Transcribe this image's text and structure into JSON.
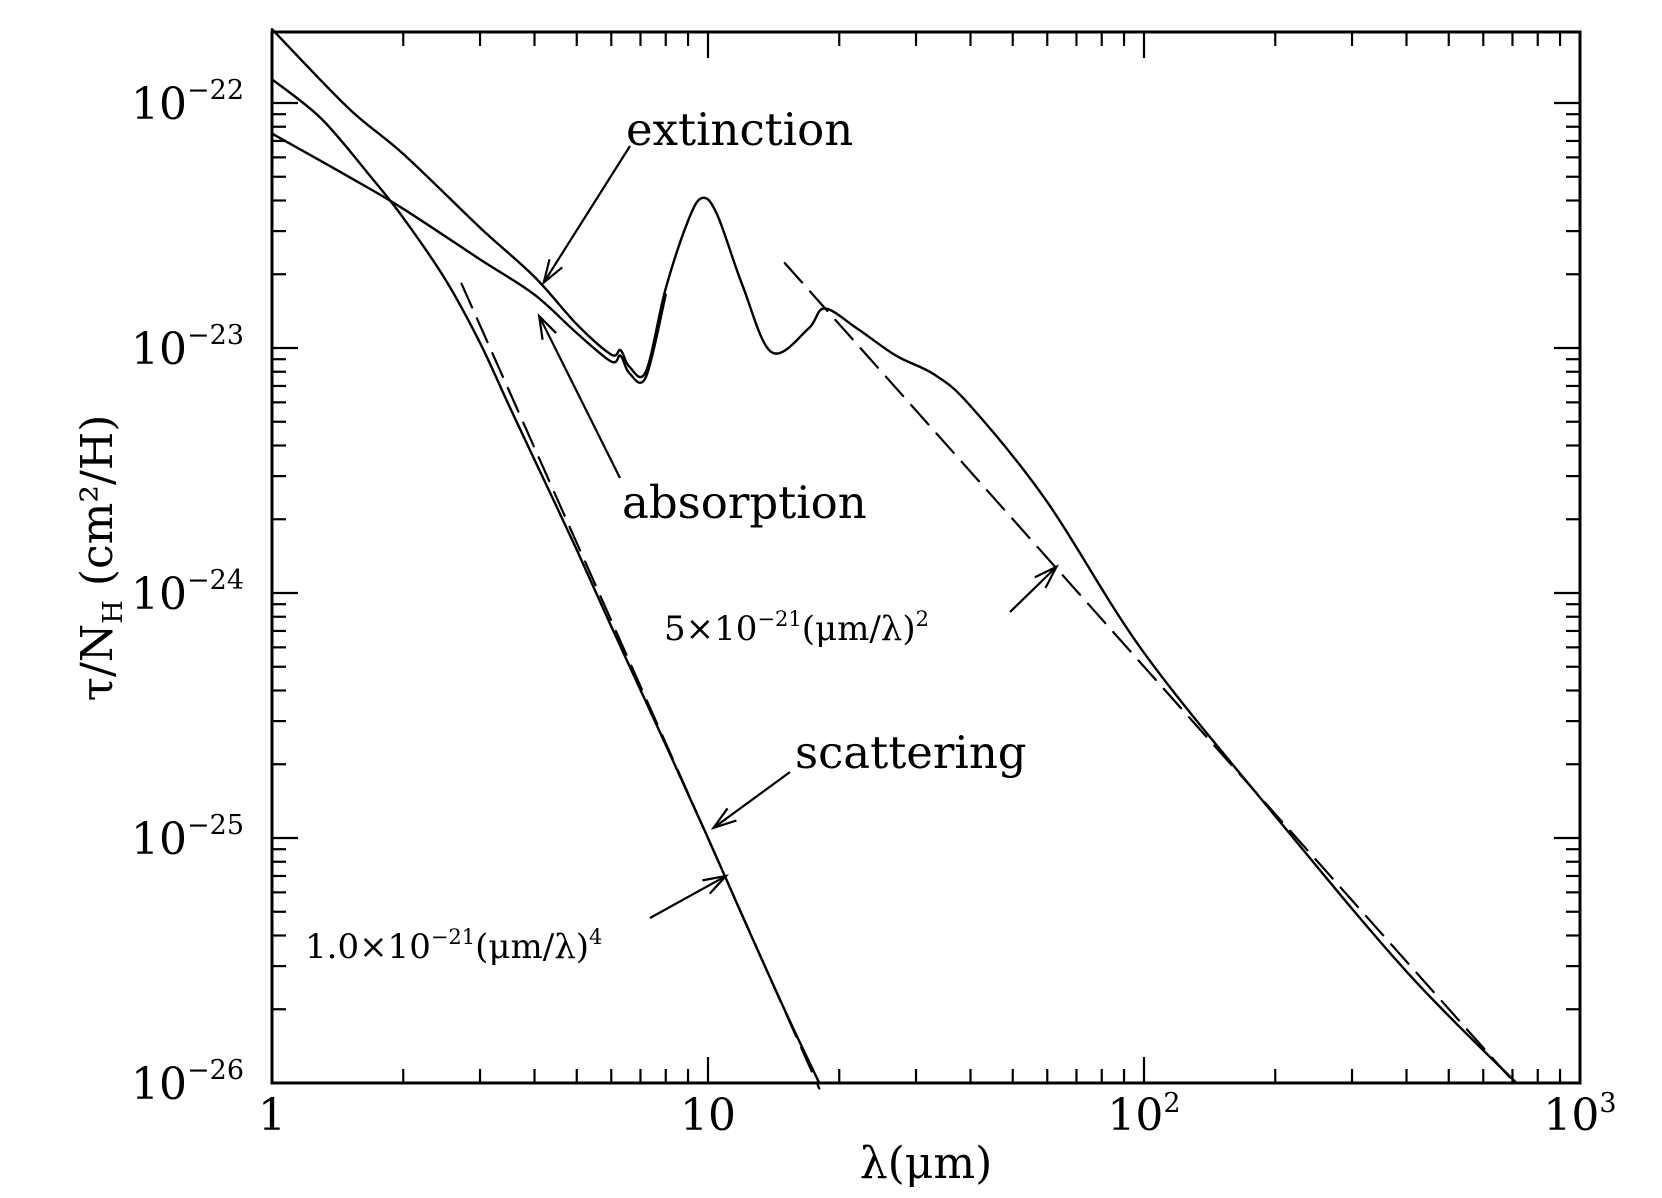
{
  "chart_data": {
    "type": "line",
    "xlabel": "λ(μm)",
    "ylabel": "τ/N_H (cm²/H)",
    "xscale": "log",
    "yscale": "log",
    "xlim": [
      1,
      1000
    ],
    "ylim": [
      1e-26,
      2e-22
    ],
    "grid": false,
    "x_ticks": [
      {
        "base": "1",
        "exp": ""
      },
      {
        "base": "10",
        "exp": ""
      },
      {
        "base": "10",
        "exp": "2"
      },
      {
        "base": "10",
        "exp": "3"
      }
    ],
    "y_ticks": [
      {
        "base": "10",
        "exp": "−22"
      },
      {
        "base": "10",
        "exp": "−23"
      },
      {
        "base": "10",
        "exp": "−24"
      },
      {
        "base": "10",
        "exp": "−25"
      },
      {
        "base": "10",
        "exp": "−26"
      }
    ],
    "series": [
      {
        "name": "extinction",
        "style": "solid",
        "x": [
          1,
          1.5,
          2,
          3,
          4,
          5,
          6,
          6.3,
          6.6,
          7.2,
          8,
          9,
          9.7,
          10.5,
          12,
          14,
          17,
          18.5,
          22,
          27,
          33,
          40,
          60,
          100,
          200,
          400,
          715
        ],
        "y": [
          2e-22,
          9.5e-23,
          6.2e-23,
          3.1e-23,
          1.95e-23,
          1.25e-23,
          9.4e-24,
          9.8e-24,
          8.4e-24,
          8e-24,
          1.75e-23,
          3.3e-23,
          4.1e-23,
          3.5e-23,
          1.8e-23,
          9.6e-24,
          1.2e-23,
          1.45e-23,
          1.2e-23,
          9.3e-24,
          7.8e-24,
          5.8e-24,
          2.35e-24,
          5.7e-25,
          1.23e-25,
          2.85e-26,
          1e-26
        ]
      },
      {
        "name": "absorption",
        "style": "solid",
        "x": [
          1,
          1.5,
          2,
          3,
          4,
          5,
          6,
          6.3,
          6.6,
          7.2,
          8
        ],
        "y": [
          7.5e-23,
          5e-23,
          3.7e-23,
          2.3e-23,
          1.65e-23,
          1.15e-23,
          8.8e-24,
          9.3e-24,
          7.9e-24,
          7.6e-24,
          1.65e-23
        ]
      },
      {
        "name": "scattering",
        "style": "solid",
        "x": [
          1,
          1.3,
          1.7,
          2,
          2.5,
          3,
          3.5,
          4,
          5,
          6,
          8,
          10,
          12,
          15,
          18
        ],
        "y": [
          1.25e-22,
          8.6e-23,
          4.9e-23,
          3.4e-23,
          1.9e-23,
          1.05e-23,
          5.8e-24,
          3.5e-24,
          1.5e-24,
          7.3e-25,
          2.4e-25,
          1e-25,
          4.8e-26,
          1.98e-26,
          1e-26
        ]
      },
      {
        "name": "1.0×10⁻²¹(μm/λ)⁴",
        "style": "dashed",
        "x": [
          2.72,
          18
        ],
        "y": [
          1.83e-23,
          9.5e-27
        ]
      },
      {
        "name": "5×10⁻²¹(μm/λ)²",
        "style": "dashed",
        "x": [
          15,
          715
        ],
        "y": [
          2.22e-23,
          9.8e-27
        ]
      }
    ],
    "annotations": [
      {
        "text": "extinction",
        "target": [
          4.2,
          1.85e-23
        ]
      },
      {
        "text": "absorption",
        "target": [
          4.1,
          1.35e-23
        ]
      },
      {
        "text": "scattering",
        "target": [
          10.3,
          1.1e-25
        ]
      },
      {
        "formula": {
          "text": "5×10",
          "exp": "−21",
          "tail": "(μm/λ)",
          "tail_exp": "2"
        },
        "target": [
          63,
          1.28e-24
        ]
      },
      {
        "formula": {
          "text": "1.0×10",
          "exp": "−21",
          "tail": "(μm/λ)",
          "tail_exp": "4"
        },
        "target": [
          11,
          7e-26
        ]
      }
    ]
  }
}
